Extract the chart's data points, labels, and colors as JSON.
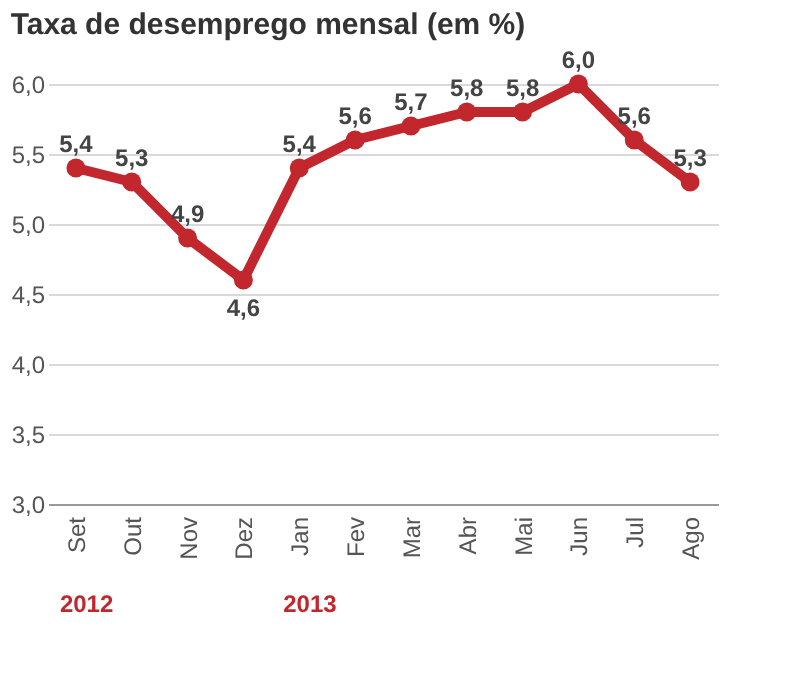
{
  "chart_data": {
    "type": "line",
    "title": "Taxa de desemprego mensal (em %)",
    "categories": [
      "Set",
      "Out",
      "Nov",
      "Dez",
      "Jan",
      "Fev",
      "Mar",
      "Abr",
      "Mai",
      "Jun",
      "Jul",
      "Ago"
    ],
    "series": [
      {
        "color": "#c1272d",
        "values": [
          5.4,
          5.3,
          4.9,
          4.6,
          5.4,
          5.6,
          5.7,
          5.8,
          5.8,
          6.0,
          5.6,
          5.3
        ],
        "value_labels": [
          "5,4",
          "5,3",
          "4,9",
          "4,6",
          "5,4",
          "5,6",
          "5,7",
          "5,8",
          "5,8",
          "6,0",
          "5,6",
          "5,3"
        ]
      }
    ],
    "ylim": [
      3.0,
      6.0
    ],
    "yticks": [
      {
        "value": 3.0,
        "label": "3,0"
      },
      {
        "value": 3.5,
        "label": "3,5"
      },
      {
        "value": 4.0,
        "label": "4,0"
      },
      {
        "value": 4.5,
        "label": "4,5"
      },
      {
        "value": 5.0,
        "label": "5,0"
      },
      {
        "value": 5.5,
        "label": "5,5"
      },
      {
        "value": 6.0,
        "label": "6,0"
      }
    ],
    "annotations": [
      "2012",
      "2013"
    ],
    "grid": "y",
    "marker": "circle",
    "line_style": "solid"
  }
}
